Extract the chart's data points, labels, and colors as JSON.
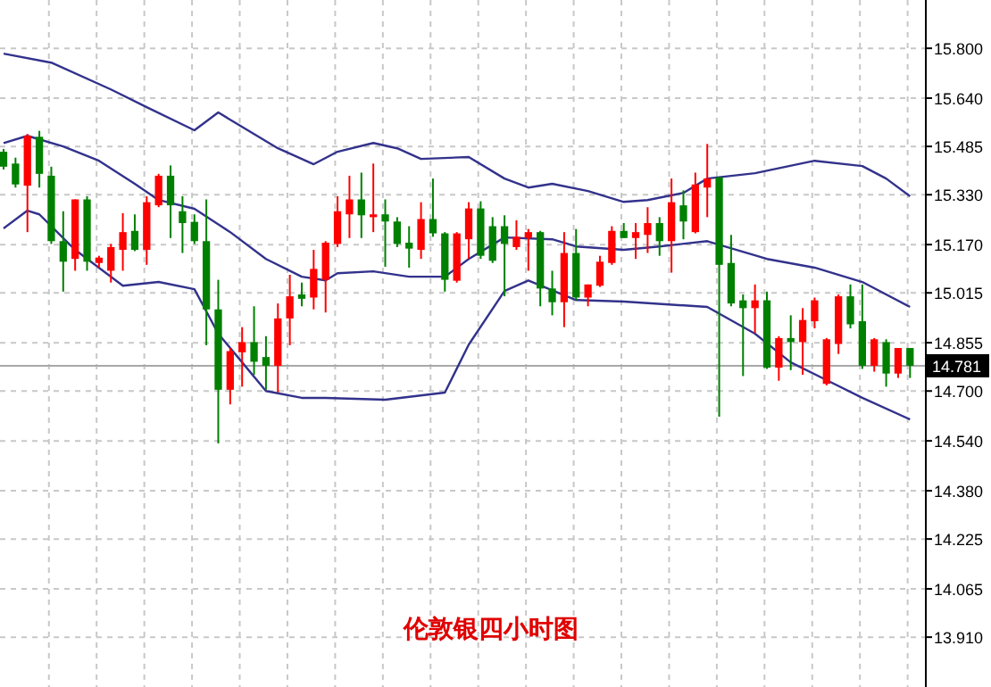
{
  "chart_data": {
    "type": "candlestick",
    "title": "伦敦银四小时图",
    "categories": [
      null,
      null,
      null,
      null,
      null,
      null,
      null,
      null,
      null,
      null,
      null,
      null,
      null,
      null,
      null,
      null,
      null,
      null,
      null,
      null,
      null,
      null,
      null,
      null,
      null,
      null,
      null,
      null,
      null,
      null,
      null,
      null,
      null,
      null,
      null,
      null,
      null,
      null,
      null,
      null,
      null,
      null,
      null,
      null,
      null,
      null,
      null,
      null,
      null,
      null,
      null,
      null,
      null,
      null,
      null,
      null,
      null,
      null,
      null,
      null,
      null,
      null,
      null,
      null,
      null,
      null,
      null,
      null,
      null,
      null,
      null,
      null,
      null,
      null,
      null,
      null,
      null
    ],
    "ohlc": [
      [
        15.468,
        15.477,
        15.411,
        15.42
      ],
      [
        15.43,
        15.449,
        15.353,
        15.363
      ],
      [
        15.359,
        15.525,
        15.21,
        15.519
      ],
      [
        15.516,
        15.535,
        15.353,
        15.397
      ],
      [
        15.391,
        15.42,
        15.172,
        15.181
      ],
      [
        15.181,
        15.277,
        15.019,
        15.115
      ],
      [
        15.124,
        15.315,
        15.086,
        15.315
      ],
      [
        15.315,
        15.325,
        15.086,
        15.115
      ],
      [
        15.111,
        15.134,
        15.096,
        15.128
      ],
      [
        15.086,
        15.172,
        15.048,
        15.162
      ],
      [
        15.153,
        15.271,
        15.086,
        15.21
      ],
      [
        15.214,
        15.267,
        15.149,
        15.153
      ],
      [
        15.153,
        15.325,
        15.105,
        15.306
      ],
      [
        15.296,
        15.397,
        15.29,
        15.391
      ],
      [
        15.391,
        15.424,
        15.191,
        15.296
      ],
      [
        15.277,
        15.325,
        15.143,
        15.239
      ],
      [
        15.243,
        15.267,
        15.172,
        15.181
      ],
      [
        15.181,
        15.315,
        14.847,
        14.962
      ],
      [
        14.962,
        15.057,
        14.532,
        14.704
      ],
      [
        14.704,
        14.838,
        14.657,
        14.828
      ],
      [
        14.824,
        14.905,
        14.714,
        14.857
      ],
      [
        14.857,
        14.972,
        14.752,
        14.794
      ],
      [
        14.809,
        14.876,
        14.704,
        14.781
      ],
      [
        14.781,
        14.981,
        14.695,
        14.933
      ],
      [
        14.933,
        15.073,
        14.847,
        15.004
      ],
      [
        15.01,
        15.048,
        14.972,
        14.996
      ],
      [
        15.0,
        15.153,
        14.962,
        15.092
      ],
      [
        15.057,
        15.181,
        14.952,
        15.176
      ],
      [
        15.172,
        15.325,
        15.162,
        15.277
      ],
      [
        15.267,
        15.391,
        15.191,
        15.315
      ],
      [
        15.315,
        15.401,
        15.191,
        15.264
      ],
      [
        15.258,
        15.43,
        15.21,
        15.267
      ],
      [
        15.267,
        15.315,
        15.099,
        15.244
      ],
      [
        15.244,
        15.258,
        15.162,
        15.172
      ],
      [
        15.176,
        15.229,
        15.096,
        15.157
      ],
      [
        15.153,
        15.306,
        15.124,
        15.252
      ],
      [
        15.252,
        15.382,
        15.195,
        15.206
      ],
      [
        15.206,
        15.21,
        15.019,
        15.057
      ],
      [
        15.054,
        15.21,
        15.048,
        15.206
      ],
      [
        15.187,
        15.306,
        15.124,
        15.286
      ],
      [
        15.286,
        15.309,
        15.124,
        15.134
      ],
      [
        15.229,
        15.258,
        15.111,
        15.118
      ],
      [
        15.229,
        15.264,
        15.004,
        15.172
      ],
      [
        15.162,
        15.248,
        15.153,
        15.195
      ],
      [
        15.191,
        15.22,
        15.086,
        15.21
      ],
      [
        15.21,
        15.214,
        14.972,
        15.029
      ],
      [
        15.029,
        15.086,
        14.943,
        14.985
      ],
      [
        14.985,
        15.21,
        14.905,
        15.143
      ],
      [
        15.143,
        15.22,
        14.991,
        15.0
      ],
      [
        15.0,
        15.042,
        14.972,
        15.042
      ],
      [
        15.038,
        15.134,
        15.034,
        15.115
      ],
      [
        15.111,
        15.229,
        15.105,
        15.214
      ],
      [
        15.214,
        15.239,
        15.191,
        15.191
      ],
      [
        15.191,
        15.239,
        15.124,
        15.21
      ],
      [
        15.201,
        15.29,
        15.143,
        15.239
      ],
      [
        15.239,
        15.258,
        15.134,
        15.181
      ],
      [
        15.181,
        15.382,
        15.08,
        15.306
      ],
      [
        15.296,
        15.344,
        15.187,
        15.244
      ],
      [
        15.21,
        15.401,
        15.206,
        15.363
      ],
      [
        15.353,
        15.493,
        15.258,
        15.382
      ],
      [
        15.386,
        15.386,
        14.618,
        15.105
      ],
      [
        15.111,
        15.201,
        14.972,
        14.981
      ],
      [
        14.991,
        15.01,
        14.748,
        14.966
      ],
      [
        14.966,
        15.042,
        14.886,
        14.991
      ],
      [
        14.991,
        15.019,
        14.771,
        14.775
      ],
      [
        14.775,
        14.876,
        14.733,
        14.87
      ],
      [
        14.87,
        14.943,
        14.767,
        14.857
      ],
      [
        14.857,
        14.966,
        14.752,
        14.928
      ],
      [
        14.924,
        15.0,
        14.901,
        14.991
      ],
      [
        14.723,
        14.87,
        14.718,
        14.866
      ],
      [
        14.851,
        15.01,
        14.819,
        15.004
      ],
      [
        15.004,
        15.042,
        14.901,
        14.914
      ],
      [
        14.924,
        15.042,
        14.771,
        14.781
      ],
      [
        14.781,
        14.87,
        14.762,
        14.866
      ],
      [
        14.857,
        14.866,
        14.714,
        14.756
      ],
      [
        14.756,
        14.838,
        14.742,
        14.838
      ],
      [
        14.838,
        14.838,
        14.742,
        14.781
      ]
    ],
    "series": [
      {
        "type": "line",
        "color": "#32328c",
        "values": [
          15.783,
          null,
          null,
          null,
          15.754,
          null,
          null,
          null,
          null,
          15.668,
          null,
          null,
          15.611,
          null,
          null,
          null,
          15.537,
          null,
          15.594,
          null,
          null,
          null,
          null,
          15.479,
          null,
          null,
          15.428,
          null,
          15.468,
          null,
          null,
          15.496,
          null,
          15.479,
          null,
          15.445,
          null,
          null,
          null,
          15.451,
          null,
          null,
          15.382,
          null,
          15.353,
          null,
          15.365,
          null,
          null,
          15.342,
          null,
          null,
          15.307,
          null,
          15.313,
          null,
          null,
          15.336,
          null,
          15.382,
          null,
          null,
          null,
          15.399,
          null,
          null,
          null,
          null,
          15.439,
          null,
          null,
          null,
          15.422,
          null,
          15.382,
          null,
          15.325
        ]
      },
      {
        "type": "line",
        "color": "#32328c",
        "values": [
          15.496,
          null,
          15.519,
          null,
          null,
          15.485,
          null,
          null,
          15.439,
          null,
          null,
          15.365,
          null,
          15.313,
          null,
          null,
          15.285,
          null,
          null,
          15.21,
          null,
          null,
          15.124,
          null,
          null,
          15.067,
          null,
          15.055,
          15.078,
          null,
          null,
          15.084,
          null,
          null,
          15.067,
          null,
          null,
          15.067,
          null,
          15.124,
          null,
          null,
          15.193,
          null,
          null,
          null,
          15.187,
          null,
          15.164,
          null,
          null,
          null,
          15.153,
          null,
          null,
          15.164,
          null,
          null,
          null,
          15.181,
          null,
          null,
          null,
          null,
          15.124,
          null,
          null,
          null,
          15.096,
          null,
          null,
          null,
          15.05,
          null,
          null,
          null,
          14.97
        ]
      },
      {
        "type": "line",
        "color": "#32328c",
        "values": [
          15.222,
          null,
          15.279,
          15.267,
          null,
          null,
          15.153,
          null,
          null,
          null,
          15.038,
          null,
          null,
          15.05,
          null,
          null,
          15.027,
          null,
          14.884,
          null,
          14.792,
          null,
          14.7,
          null,
          null,
          14.678,
          null,
          14.678,
          null,
          null,
          null,
          null,
          14.672,
          null,
          null,
          null,
          null,
          14.695,
          null,
          14.849,
          null,
          null,
          15.021,
          null,
          15.055,
          null,
          null,
          null,
          14.992,
          null,
          null,
          null,
          14.987,
          null,
          null,
          null,
          null,
          null,
          null,
          14.97,
          null,
          null,
          null,
          14.884,
          null,
          null,
          14.792,
          null,
          null,
          14.735,
          null,
          null,
          14.678,
          null,
          null,
          null,
          14.609
        ]
      }
    ],
    "ylim": [
      13.75,
      15.955
    ],
    "yticks": [
      {
        "value": 13.91,
        "label": "13.910"
      },
      {
        "value": 14.065,
        "label": "14.065"
      },
      {
        "value": 14.225,
        "label": "14.225"
      },
      {
        "value": 14.38,
        "label": "14.380"
      },
      {
        "value": 14.54,
        "label": "14.540"
      },
      {
        "value": 14.7,
        "label": "14.700"
      },
      {
        "value": 14.855,
        "label": "14.855"
      },
      {
        "value": 15.015,
        "label": "15.015"
      },
      {
        "value": 15.17,
        "label": "15.170"
      },
      {
        "value": 15.33,
        "label": "15.330"
      },
      {
        "value": 15.485,
        "label": "15.485"
      },
      {
        "value": 15.64,
        "label": "15.640"
      },
      {
        "value": 15.8,
        "label": "15.800"
      }
    ],
    "grid": true,
    "ref_lines": [
      {
        "axis": "y",
        "value": 14.781,
        "label": "14.781",
        "color": "#a8a8a8"
      }
    ]
  }
}
